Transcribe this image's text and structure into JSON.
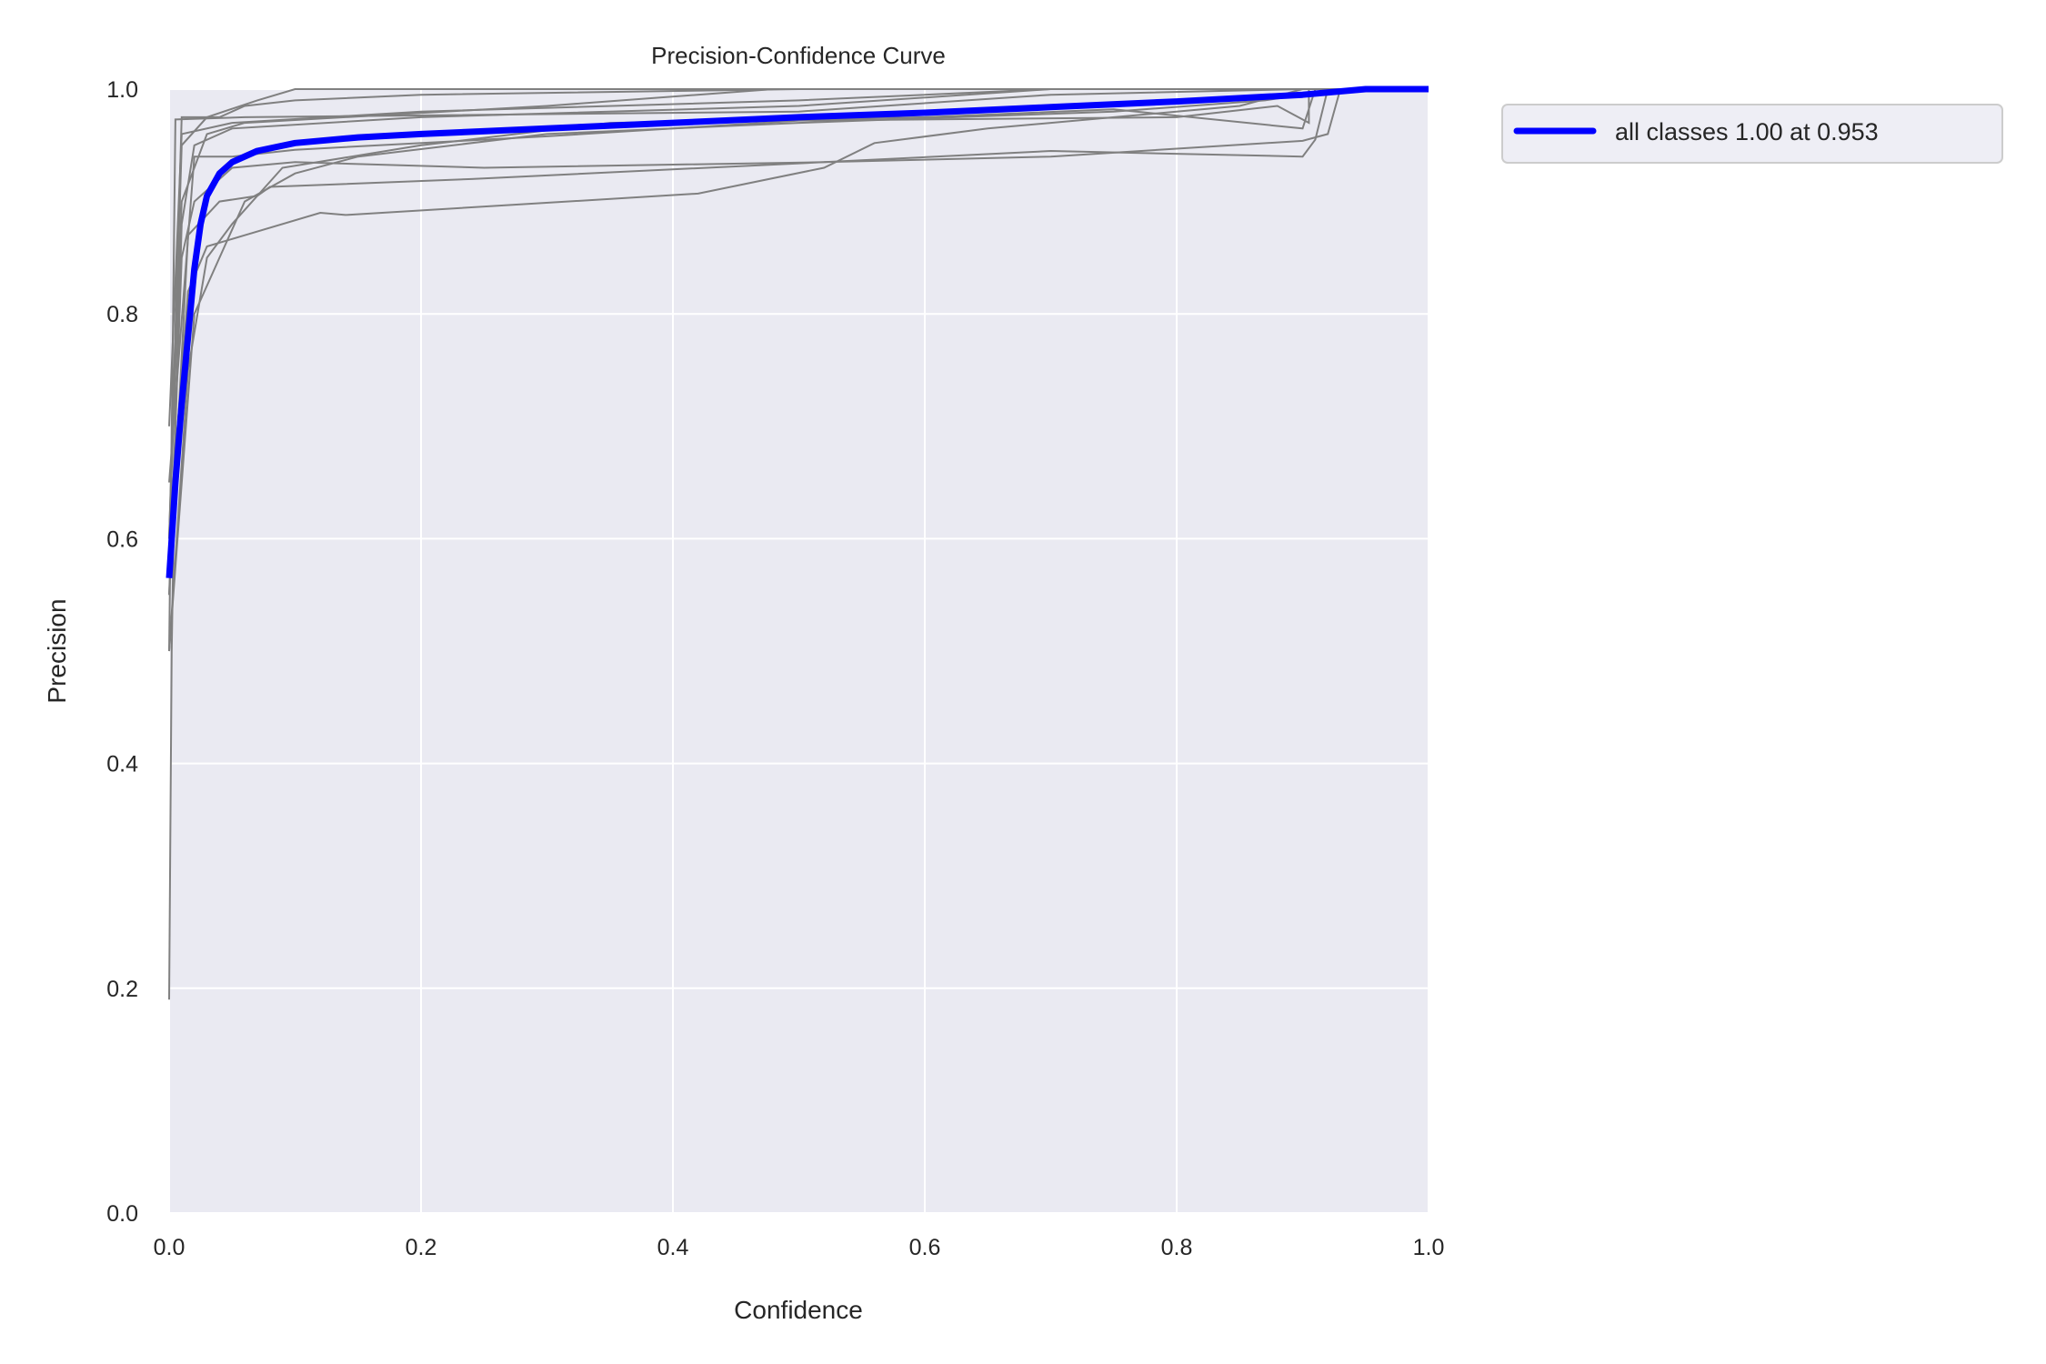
{
  "chart_data": {
    "type": "line",
    "title": "Precision-Confidence Curve",
    "xlabel": "Confidence",
    "ylabel": "Precision",
    "xlim": [
      0,
      1
    ],
    "ylim": [
      0,
      1
    ],
    "xticks": [
      "0.0",
      "0.2",
      "0.4",
      "0.6",
      "0.8",
      "1.0"
    ],
    "yticks": [
      "0.0",
      "0.2",
      "0.4",
      "0.6",
      "0.8",
      "1.0"
    ],
    "grid": true,
    "legend_position": "outside-top-right",
    "colors": {
      "background": "#eaeaf2",
      "grid": "#ffffff",
      "class_curves": "#808080",
      "all_classes": "#0000ff"
    },
    "legend": {
      "label": "all classes 1.00 at 0.953"
    },
    "all_classes": {
      "name": "all classes 1.00 at 0.953",
      "points": [
        [
          0,
          0.565
        ],
        [
          0.005,
          0.65
        ],
        [
          0.01,
          0.72
        ],
        [
          0.015,
          0.78
        ],
        [
          0.02,
          0.84
        ],
        [
          0.025,
          0.88
        ],
        [
          0.03,
          0.905
        ],
        [
          0.04,
          0.925
        ],
        [
          0.05,
          0.935
        ],
        [
          0.07,
          0.945
        ],
        [
          0.1,
          0.952
        ],
        [
          0.15,
          0.957
        ],
        [
          0.2,
          0.96
        ],
        [
          0.3,
          0.965
        ],
        [
          0.4,
          0.97
        ],
        [
          0.5,
          0.975
        ],
        [
          0.6,
          0.979
        ],
        [
          0.7,
          0.984
        ],
        [
          0.8,
          0.989
        ],
        [
          0.9,
          0.995
        ],
        [
          0.95,
          1.0
        ],
        [
          1.0,
          1.0
        ]
      ]
    },
    "class_series": [
      {
        "points": [
          [
            0,
            0.19
          ],
          [
            0.002,
            0.5
          ],
          [
            0.005,
            0.7
          ],
          [
            0.01,
            0.88
          ],
          [
            0.02,
            0.95
          ],
          [
            0.05,
            0.965
          ],
          [
            0.2,
            0.975
          ],
          [
            0.5,
            0.985
          ],
          [
            0.7,
            1.0
          ],
          [
            1,
            1
          ]
        ]
      },
      {
        "points": [
          [
            0,
            0.5
          ],
          [
            0.005,
            0.973
          ],
          [
            0.06,
            0.975
          ],
          [
            0.5,
            0.98
          ],
          [
            0.7,
            0.995
          ],
          [
            0.9,
            1.0
          ],
          [
            1,
            1
          ]
        ]
      },
      {
        "points": [
          [
            0,
            0.55
          ],
          [
            0.01,
            0.85
          ],
          [
            0.02,
            0.9
          ],
          [
            0.05,
            0.93
          ],
          [
            0.1,
            0.935
          ],
          [
            0.25,
            0.93
          ],
          [
            0.52,
            0.935
          ],
          [
            0.7,
            0.945
          ],
          [
            0.9,
            0.94
          ],
          [
            0.91,
            0.955
          ],
          [
            0.92,
            1.0
          ],
          [
            1,
            1
          ]
        ]
      },
      {
        "points": [
          [
            0,
            0.6
          ],
          [
            0.015,
            0.82
          ],
          [
            0.03,
            0.86
          ],
          [
            0.06,
            0.87
          ],
          [
            0.12,
            0.89
          ],
          [
            0.14,
            0.888
          ],
          [
            0.42,
            0.907
          ],
          [
            0.52,
            0.93
          ],
          [
            0.56,
            0.952
          ],
          [
            0.65,
            0.965
          ],
          [
            0.85,
            0.985
          ],
          [
            0.9,
            1.0
          ],
          [
            1,
            1
          ]
        ]
      },
      {
        "points": [
          [
            0,
            0.65
          ],
          [
            0.02,
            0.94
          ],
          [
            0.05,
            0.94
          ],
          [
            0.1,
            0.946
          ],
          [
            0.3,
            0.958
          ],
          [
            0.5,
            0.972
          ],
          [
            0.8,
            0.975
          ],
          [
            0.88,
            0.985
          ],
          [
            0.905,
            0.97
          ],
          [
            0.905,
            1.0
          ],
          [
            1,
            1
          ]
        ]
      },
      {
        "points": [
          [
            0,
            0.7
          ],
          [
            0.01,
            0.96
          ],
          [
            0.05,
            0.97
          ],
          [
            0.2,
            0.98
          ],
          [
            0.5,
            0.99
          ],
          [
            0.7,
            1
          ],
          [
            1,
            1
          ]
        ]
      },
      {
        "points": [
          [
            0,
            0.5
          ],
          [
            0.02,
            0.8
          ],
          [
            0.04,
            0.85
          ],
          [
            0.06,
            0.9
          ],
          [
            0.1,
            0.925
          ],
          [
            0.15,
            0.94
          ],
          [
            0.3,
            0.96
          ],
          [
            0.5,
            0.97
          ],
          [
            0.75,
            0.98
          ],
          [
            0.87,
            0.99
          ],
          [
            0.93,
            1
          ],
          [
            1,
            1
          ]
        ]
      },
      {
        "points": [
          [
            0,
            0.6
          ],
          [
            0.01,
            0.9
          ],
          [
            0.03,
            0.96
          ],
          [
            0.06,
            0.97
          ],
          [
            0.3,
            0.985
          ],
          [
            0.48,
            1
          ],
          [
            1,
            1
          ]
        ]
      },
      {
        "points": [
          [
            0,
            0.55
          ],
          [
            0.015,
            0.87
          ],
          [
            0.04,
            0.9
          ],
          [
            0.07,
            0.905
          ],
          [
            0.08,
            0.913
          ],
          [
            0.24,
            0.92
          ],
          [
            0.52,
            0.935
          ],
          [
            0.7,
            0.94
          ],
          [
            0.9,
            0.954
          ],
          [
            0.92,
            0.96
          ],
          [
            0.93,
            1
          ],
          [
            1,
            1
          ]
        ]
      },
      {
        "points": [
          [
            0,
            0.6
          ],
          [
            0.01,
            0.95
          ],
          [
            0.03,
            0.975
          ],
          [
            0.07,
            0.99
          ],
          [
            0.1,
            1
          ],
          [
            1,
            1
          ]
        ]
      },
      {
        "points": [
          [
            0,
            0.5
          ],
          [
            0.015,
            0.75
          ],
          [
            0.03,
            0.85
          ],
          [
            0.05,
            0.88
          ],
          [
            0.09,
            0.93
          ],
          [
            0.2,
            0.95
          ],
          [
            0.35,
            0.97
          ],
          [
            0.6,
            0.975
          ],
          [
            0.75,
            0.982
          ],
          [
            0.9,
            0.965
          ],
          [
            0.91,
            1
          ],
          [
            1,
            1
          ]
        ]
      },
      {
        "points": [
          [
            0,
            0.6
          ],
          [
            0.01,
            0.975
          ],
          [
            0.04,
            0.975
          ],
          [
            0.06,
            0.985
          ],
          [
            0.1,
            0.99
          ],
          [
            0.2,
            0.995
          ],
          [
            0.5,
            1
          ],
          [
            1,
            1
          ]
        ]
      }
    ]
  }
}
